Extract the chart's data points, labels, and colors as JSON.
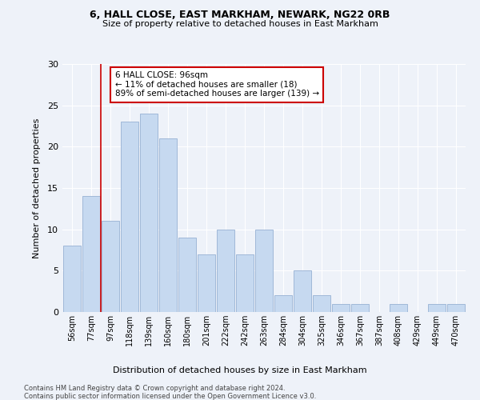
{
  "title1": "6, HALL CLOSE, EAST MARKHAM, NEWARK, NG22 0RB",
  "title2": "Size of property relative to detached houses in East Markham",
  "xlabel": "Distribution of detached houses by size in East Markham",
  "ylabel": "Number of detached properties",
  "footnote1": "Contains HM Land Registry data © Crown copyright and database right 2024.",
  "footnote2": "Contains public sector information licensed under the Open Government Licence v3.0.",
  "categories": [
    "56sqm",
    "77sqm",
    "97sqm",
    "118sqm",
    "139sqm",
    "160sqm",
    "180sqm",
    "201sqm",
    "222sqm",
    "242sqm",
    "263sqm",
    "284sqm",
    "304sqm",
    "325sqm",
    "346sqm",
    "367sqm",
    "387sqm",
    "408sqm",
    "429sqm",
    "449sqm",
    "470sqm"
  ],
  "values": [
    8,
    14,
    11,
    23,
    24,
    21,
    9,
    7,
    10,
    7,
    10,
    2,
    5,
    2,
    1,
    1,
    0,
    1,
    0,
    1,
    1
  ],
  "bar_color": "#c6d9f0",
  "bar_edge_color": "#a0b8d8",
  "vline_color": "#cc0000",
  "annotation_text": "6 HALL CLOSE: 96sqm\n← 11% of detached houses are smaller (18)\n89% of semi-detached houses are larger (139) →",
  "annotation_box_color": "#ffffff",
  "annotation_box_edge_color": "#cc0000",
  "ylim": [
    0,
    30
  ],
  "yticks": [
    0,
    5,
    10,
    15,
    20,
    25,
    30
  ],
  "background_color": "#eef2f9",
  "grid_color": "#ffffff"
}
